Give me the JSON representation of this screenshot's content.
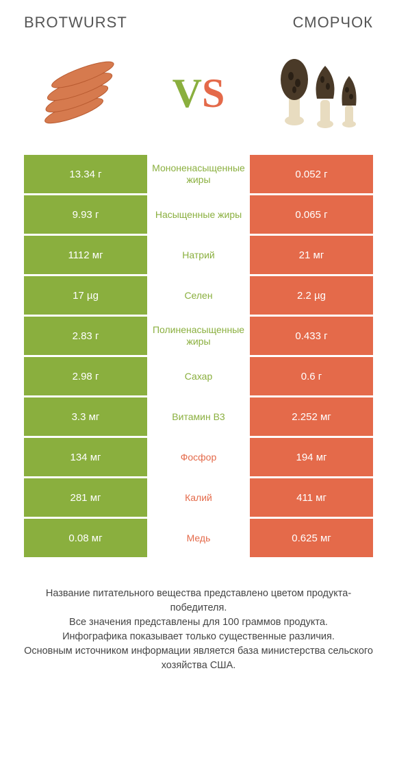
{
  "header": {
    "left": "BROTWURST",
    "right": "СМОРЧОК"
  },
  "vs": {
    "v": "V",
    "s": "S"
  },
  "colors": {
    "green": "#8aaf3e",
    "orange": "#e46a4a",
    "green_text": "#8aaf3e",
    "orange_text": "#e46a4a"
  },
  "rows": [
    {
      "left": "13.34 г",
      "mid": "Мононенасыщенные жиры",
      "right": "0.052 г",
      "winner": "left"
    },
    {
      "left": "9.93 г",
      "mid": "Насыщенные жиры",
      "right": "0.065 г",
      "winner": "left"
    },
    {
      "left": "1112 мг",
      "mid": "Натрий",
      "right": "21 мг",
      "winner": "left"
    },
    {
      "left": "17 µg",
      "mid": "Селен",
      "right": "2.2 µg",
      "winner": "left"
    },
    {
      "left": "2.83 г",
      "mid": "Полиненасыщенные жиры",
      "right": "0.433 г",
      "winner": "left"
    },
    {
      "left": "2.98 г",
      "mid": "Сахар",
      "right": "0.6 г",
      "winner": "left"
    },
    {
      "left": "3.3 мг",
      "mid": "Витамин B3",
      "right": "2.252 мг",
      "winner": "left"
    },
    {
      "left": "134 мг",
      "mid": "Фосфор",
      "right": "194 мг",
      "winner": "right"
    },
    {
      "left": "281 мг",
      "mid": "Калий",
      "right": "411 мг",
      "winner": "right"
    },
    {
      "left": "0.08 мг",
      "mid": "Медь",
      "right": "0.625 мг",
      "winner": "right"
    }
  ],
  "footer": {
    "line1": "Название питательного вещества представлено цветом продукта-победителя.",
    "line2": "Все значения представлены для 100 граммов продукта.",
    "line3": "Инфографика показывает только существенные различия.",
    "line4": "Основным источником информации является база министерства сельского хозяйства США."
  },
  "svg": {
    "sausage_fill": "#d67a4e",
    "sausage_stroke": "#b85a30",
    "morel_cap": "#4a3a28",
    "morel_stem": "#e8dcc0"
  }
}
